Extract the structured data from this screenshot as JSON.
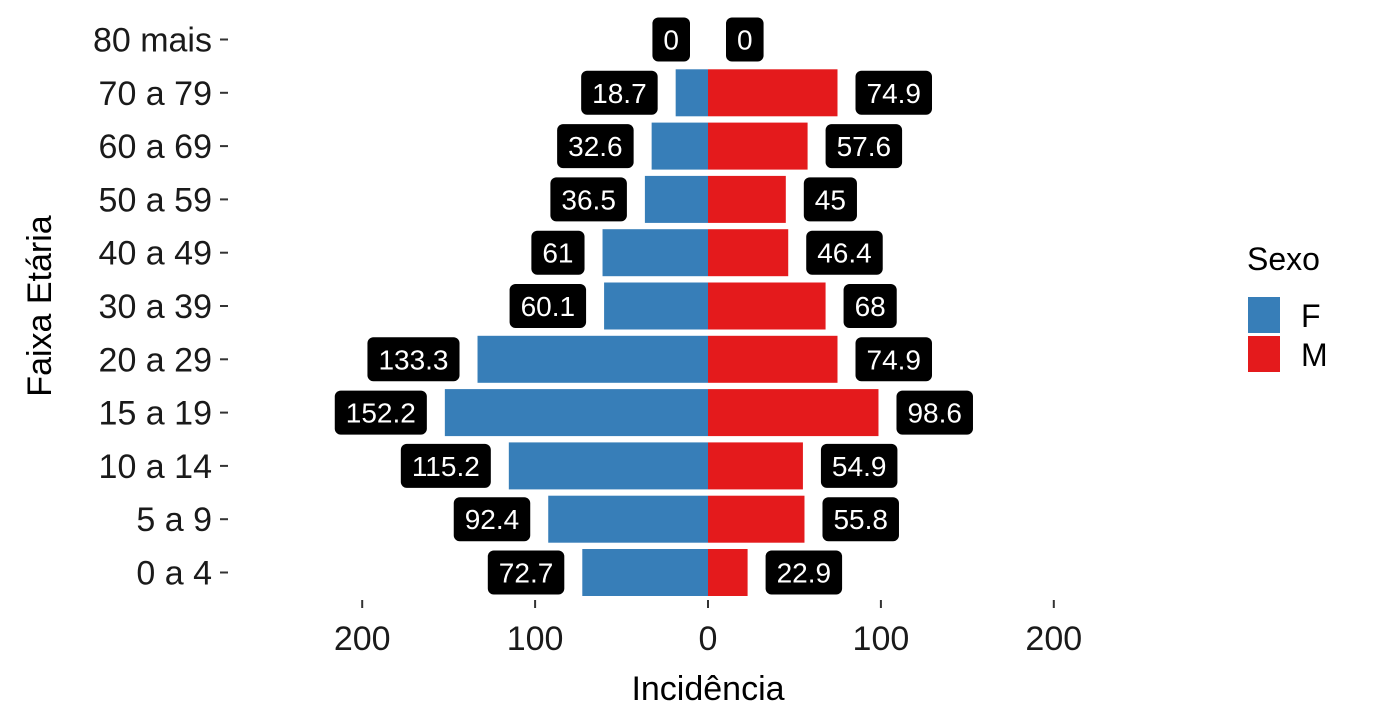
{
  "chart_data": {
    "type": "bar",
    "orientation": "horizontal",
    "layout": "population-pyramid",
    "xlabel": "Incidência",
    "ylabel": "Faixa Etária",
    "xlim": [
      -200,
      200
    ],
    "x_ticks": [
      -200,
      -100,
      0,
      100,
      200
    ],
    "x_tick_labels": [
      "200",
      "100",
      "0",
      "100",
      "200"
    ],
    "grid": false,
    "categories": [
      "80 mais",
      "70 a 79",
      "60 a 69",
      "50 a 59",
      "40 a 49",
      "30 a 39",
      "20 a 29",
      "15 a 19",
      "10 a 14",
      "5 a 9",
      "0 a 4"
    ],
    "series": [
      {
        "name": "F",
        "side": "left",
        "color": "#377EB8",
        "values": [
          0,
          18.7,
          32.6,
          36.5,
          61,
          60.1,
          133.3,
          152.2,
          115.2,
          92.4,
          72.7
        ],
        "labels": [
          "0",
          "18.7",
          "32.6",
          "36.5",
          "61",
          "60.1",
          "133.3",
          "152.2",
          "115.2",
          "92.4",
          "72.7"
        ]
      },
      {
        "name": "M",
        "side": "right",
        "color": "#E41A1C",
        "values": [
          0,
          74.9,
          57.6,
          45,
          46.4,
          68,
          74.9,
          98.6,
          54.9,
          55.8,
          22.9
        ],
        "labels": [
          "0",
          "74.9",
          "57.6",
          "45",
          "46.4",
          "68",
          "74.9",
          "98.6",
          "54.9",
          "55.8",
          "22.9"
        ]
      }
    ],
    "legend": {
      "title": "Sexo",
      "position": "right"
    }
  }
}
